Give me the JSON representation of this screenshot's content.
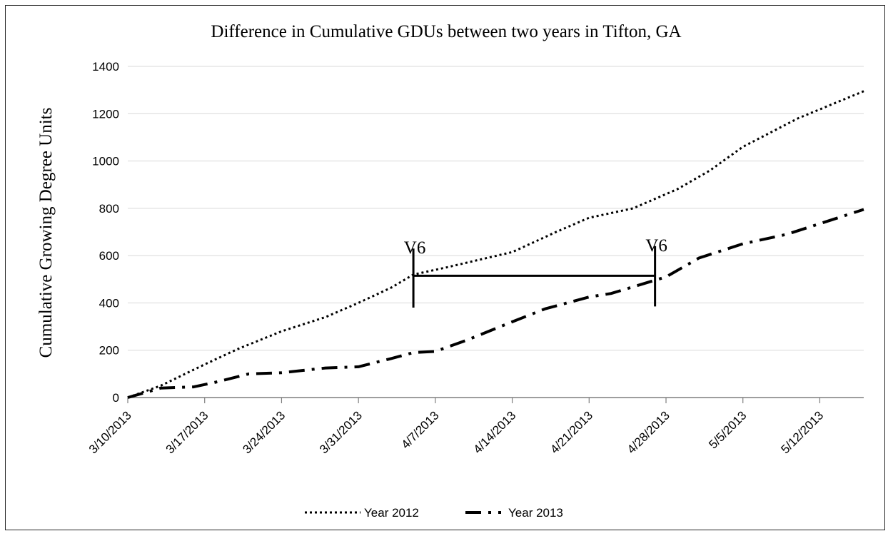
{
  "chart_data": {
    "type": "line",
    "title": "Difference in Cumulative GDUs between two years in Tifton, GA",
    "xlabel": "",
    "ylabel": "Cumulative Growing Degree Units",
    "ylim": [
      0,
      1400
    ],
    "yticks": [
      0,
      200,
      400,
      600,
      800,
      1000,
      1200,
      1400
    ],
    "xlim": [
      "3/10/2013",
      "5/16/2013"
    ],
    "xticks": [
      "3/10/2013",
      "3/17/2013",
      "3/24/2013",
      "3/31/2013",
      "4/7/2013",
      "4/14/2013",
      "4/21/2013",
      "4/28/2013",
      "5/5/2013",
      "5/12/2013"
    ],
    "grid": "horizontal",
    "legend_position": "bottom",
    "series": [
      {
        "name": "Year 2012",
        "style": "dotted",
        "color": "#000000",
        "points": [
          [
            "3/10/2013",
            0
          ],
          [
            "3/13/2013",
            50
          ],
          [
            "3/17/2013",
            140
          ],
          [
            "3/20/2013",
            205
          ],
          [
            "3/24/2013",
            280
          ],
          [
            "3/28/2013",
            340
          ],
          [
            "3/31/2013",
            400
          ],
          [
            "4/3/2013",
            465
          ],
          [
            "4/5/2013",
            520
          ],
          [
            "4/8/2013",
            550
          ],
          [
            "4/14/2013",
            615
          ],
          [
            "4/18/2013",
            700
          ],
          [
            "4/21/2013",
            760
          ],
          [
            "4/25/2013",
            800
          ],
          [
            "4/29/2013",
            880
          ],
          [
            "5/2/2013",
            960
          ],
          [
            "5/5/2013",
            1060
          ],
          [
            "5/10/2013",
            1180
          ],
          [
            "5/16/2013",
            1295
          ]
        ]
      },
      {
        "name": "Year 2013",
        "style": "dash-dot",
        "color": "#000000",
        "points": [
          [
            "3/10/2013",
            0
          ],
          [
            "3/13/2013",
            40
          ],
          [
            "3/16/2013",
            45
          ],
          [
            "3/18/2013",
            65
          ],
          [
            "3/21/2013",
            100
          ],
          [
            "3/24/2013",
            105
          ],
          [
            "3/28/2013",
            125
          ],
          [
            "3/31/2013",
            130
          ],
          [
            "4/3/2013",
            165
          ],
          [
            "4/5/2013",
            190
          ],
          [
            "4/7/2013",
            195
          ],
          [
            "4/10/2013",
            245
          ],
          [
            "4/14/2013",
            320
          ],
          [
            "4/17/2013",
            375
          ],
          [
            "4/21/2013",
            425
          ],
          [
            "4/23/2013",
            440
          ],
          [
            "4/28/2013",
            510
          ],
          [
            "5/1/2013",
            590
          ],
          [
            "5/5/2013",
            650
          ],
          [
            "5/9/2013",
            690
          ],
          [
            "5/12/2013",
            735
          ],
          [
            "5/16/2013",
            795
          ]
        ]
      }
    ],
    "annotations": [
      {
        "text": "V6",
        "x": "4/5/2013",
        "y_low": 380,
        "y_high": 630
      },
      {
        "text": "V6",
        "x": "4/27/2013",
        "y_low": 385,
        "y_high": 640
      },
      {
        "text": "",
        "type": "bracket",
        "x_start": "4/5/2013",
        "x_end": "4/27/2013",
        "y": 515
      }
    ]
  }
}
